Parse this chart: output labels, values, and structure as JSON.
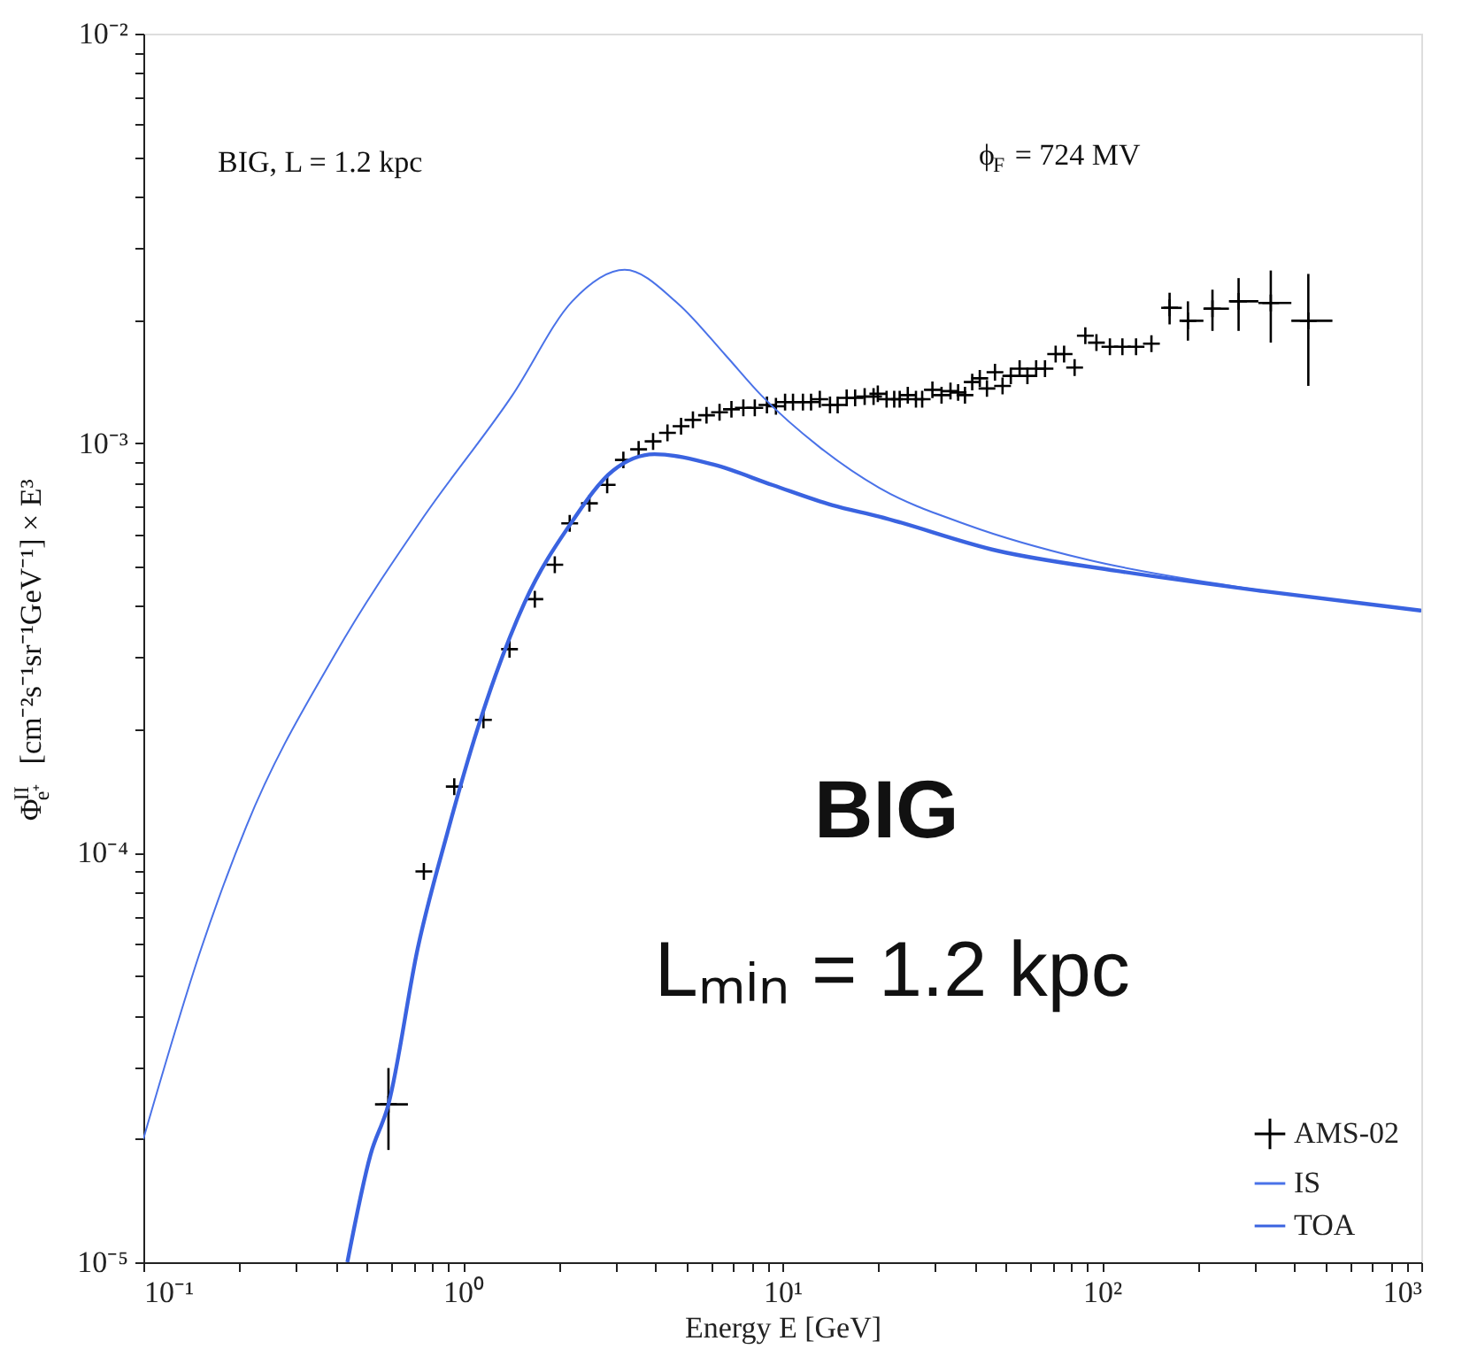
{
  "chart_data": {
    "type": "line",
    "xlabel": "Energy E [GeV]",
    "ylabel": "Φ$^{II}$$_{e⁺}$ [cm⁻²s⁻¹sr⁻¹GeV⁻¹] × E³",
    "annotations": [
      "BIG, L = 1.2 kpc",
      "ϕ$_{F}$ = 724 MV",
      "BIG",
      "Lₘᵢₙ = 1.2 kpc"
    ],
    "log": "xy",
    "grid": false,
    "legend": "bottom right",
    "xlim": [
      0.1,
      1000
    ],
    "ylim": [
      1e-05,
      0.01
    ],
    "xticks": [
      {
        "value": 0.1,
        "label": "10⁻¹"
      },
      {
        "value": 0.2,
        "label": null
      },
      {
        "value": 0.3,
        "label": null
      },
      {
        "value": 0.4,
        "label": null
      },
      {
        "value": 0.5,
        "label": null
      },
      {
        "value": 0.6,
        "label": null
      },
      {
        "value": 0.7,
        "label": null
      },
      {
        "value": 0.8,
        "label": null
      },
      {
        "value": 0.9,
        "label": null
      },
      {
        "value": 1,
        "label": "10⁰"
      },
      {
        "value": 2,
        "label": null
      },
      {
        "value": 3,
        "label": null
      },
      {
        "value": 4,
        "label": null
      },
      {
        "value": 5,
        "label": null
      },
      {
        "value": 6,
        "label": null
      },
      {
        "value": 7,
        "label": null
      },
      {
        "value": 8,
        "label": null
      },
      {
        "value": 9,
        "label": null
      },
      {
        "value": 10,
        "label": "10¹"
      },
      {
        "value": 20,
        "label": null
      },
      {
        "value": 30,
        "label": null
      },
      {
        "value": 40,
        "label": null
      },
      {
        "value": 50,
        "label": null
      },
      {
        "value": 60,
        "label": null
      },
      {
        "value": 70,
        "label": null
      },
      {
        "value": 80,
        "label": null
      },
      {
        "value": 90,
        "label": null
      },
      {
        "value": 100,
        "label": "10²"
      },
      {
        "value": 200,
        "label": null
      },
      {
        "value": 300,
        "label": null
      },
      {
        "value": 400,
        "label": null
      },
      {
        "value": 500,
        "label": null
      },
      {
        "value": 600,
        "label": null
      },
      {
        "value": 700,
        "label": null
      },
      {
        "value": 800,
        "label": null
      },
      {
        "value": 900,
        "label": null
      },
      {
        "value": 1000,
        "label": "10³"
      }
    ],
    "yticks": [
      {
        "value": 1e-05,
        "label": "10⁻⁵"
      },
      {
        "value": 2e-05,
        "label": null
      },
      {
        "value": 3e-05,
        "label": null
      },
      {
        "value": 4e-05,
        "label": null
      },
      {
        "value": 5e-05,
        "label": null
      },
      {
        "value": 6e-05,
        "label": null
      },
      {
        "value": 7e-05,
        "label": null
      },
      {
        "value": 8e-05,
        "label": null
      },
      {
        "value": 9e-05,
        "label": null
      },
      {
        "value": 0.0001,
        "label": "10⁻⁴"
      },
      {
        "value": 0.0002,
        "label": null
      },
      {
        "value": 0.0003,
        "label": null
      },
      {
        "value": 0.0004,
        "label": null
      },
      {
        "value": 0.0005,
        "label": null
      },
      {
        "value": 0.0006,
        "label": null
      },
      {
        "value": 0.0007,
        "label": null
      },
      {
        "value": 0.0008,
        "label": null
      },
      {
        "value": 0.0009,
        "label": null
      },
      {
        "value": 0.001,
        "label": "10⁻³"
      },
      {
        "value": 0.002,
        "label": null
      },
      {
        "value": 0.003,
        "label": null
      },
      {
        "value": 0.004,
        "label": null
      },
      {
        "value": 0.005,
        "label": null
      },
      {
        "value": 0.006,
        "label": null
      },
      {
        "value": 0.007,
        "label": null
      },
      {
        "value": 0.008,
        "label": null
      },
      {
        "value": 0.009,
        "label": null
      },
      {
        "value": 0.01,
        "label": "10⁻²"
      }
    ],
    "series": [
      {
        "name": "AMS-02",
        "type": "scatter",
        "marker": "cross",
        "color": "#000000",
        "x": [
          0.585,
          0.755,
          0.94,
          1.16,
          1.4,
          1.68,
          1.94,
          2.16,
          2.49,
          2.83,
          3.18,
          3.55,
          3.94,
          4.37,
          4.82,
          5.25,
          5.79,
          6.36,
          6.93,
          7.55,
          8.2,
          8.95,
          9.55,
          10.2,
          10.8,
          11.6,
          12.3,
          13.1,
          14.1,
          14.9,
          15.9,
          16.9,
          18.1,
          19.3,
          19.9,
          21.2,
          22.4,
          23.3,
          24.7,
          26.2,
          27.4,
          29.5,
          31.5,
          33.6,
          35.5,
          37.3,
          39.3,
          41.5,
          43.7,
          46.3,
          48.9,
          51.9,
          55.3,
          58.5,
          62.3,
          66.4,
          71.7,
          76.2,
          82.2,
          88.8,
          96.2,
          106,
          116,
          128,
          143,
          163,
          186,
          222,
          268,
          338,
          443
        ],
        "values": [
          2.43e-05,
          9e-05,
          0.000145,
          0.000211,
          0.000314,
          0.000416,
          0.000505,
          0.000637,
          0.000713,
          0.000791,
          0.00091,
          0.000966,
          0.00101,
          0.00106,
          0.0011,
          0.00114,
          0.00117,
          0.00119,
          0.00121,
          0.00122,
          0.00122,
          0.00124,
          0.00123,
          0.00126,
          0.00126,
          0.00126,
          0.00126,
          0.00128,
          0.00124,
          0.00124,
          0.00129,
          0.00129,
          0.0013,
          0.0013,
          0.00132,
          0.00128,
          0.00128,
          0.00128,
          0.00131,
          0.00128,
          0.00128,
          0.00135,
          0.00131,
          0.00134,
          0.00133,
          0.00131,
          0.00141,
          0.00144,
          0.00136,
          0.00149,
          0.00138,
          0.00146,
          0.00152,
          0.00146,
          0.00152,
          0.00152,
          0.00165,
          0.00165,
          0.00153,
          0.00183,
          0.00176,
          0.00172,
          0.00172,
          0.00172,
          0.00175,
          0.00214,
          0.00199,
          0.00213,
          0.00222,
          0.0022,
          0.00199
        ],
        "errors": [
          [
            1.88e-05,
            2.98e-05
          ],
          null,
          null,
          null,
          null,
          null,
          null,
          null,
          null,
          null,
          null,
          null,
          null,
          null,
          null,
          null,
          null,
          null,
          null,
          null,
          null,
          null,
          null,
          null,
          null,
          null,
          null,
          null,
          null,
          null,
          null,
          null,
          null,
          null,
          null,
          null,
          null,
          null,
          null,
          null,
          null,
          null,
          null,
          null,
          null,
          null,
          null,
          null,
          null,
          null,
          null,
          null,
          null,
          null,
          null,
          null,
          null,
          null,
          null,
          null,
          null,
          null,
          null,
          null,
          null,
          [
            0.00195,
            0.00233
          ],
          [
            0.00178,
            0.00222
          ],
          [
            0.00188,
            0.00237
          ],
          [
            0.00188,
            0.00253
          ],
          [
            0.00176,
            0.00264
          ],
          [
            0.00138,
            0.00259
          ]
        ],
        "xerrors": [
          [
            0.531,
            0.673
          ],
          null,
          null,
          null,
          null,
          null,
          null,
          null,
          null,
          null,
          null,
          null,
          null,
          null,
          null,
          null,
          null,
          null,
          null,
          null,
          null,
          null,
          null,
          null,
          null,
          null,
          null,
          null,
          null,
          null,
          null,
          null,
          null,
          null,
          null,
          null,
          null,
          null,
          null,
          null,
          null,
          null,
          null,
          null,
          null,
          null,
          null,
          null,
          null,
          null,
          null,
          null,
          null,
          null,
          null,
          null,
          null,
          null,
          null,
          null,
          null,
          null,
          null,
          null,
          null,
          [
            156,
            178
          ],
          [
            178,
            208
          ],
          [
            208,
            250
          ],
          [
            250,
            309
          ],
          [
            309,
            392
          ],
          [
            392,
            527
          ]
        ]
      },
      {
        "name": "IS",
        "color": "#4a72e8",
        "x": [
          0.1,
          0.152,
          0.21,
          0.398,
          0.755,
          1.43,
          2.2,
          3.21,
          4.72,
          6.64,
          8.58,
          13.1,
          20.1,
          38.1,
          89.5,
          260,
          1000
        ],
        "values": [
          2e-05,
          5.86e-05,
          0.000116,
          0.000305,
          0.000662,
          0.00131,
          0.00222,
          0.00265,
          0.00219,
          0.00164,
          0.00131,
          0.000977,
          0.000778,
          0.000631,
          0.00052,
          0.000447,
          0.00039
        ]
      },
      {
        "name": "TOA",
        "color": "#3a63e0",
        "x": [
          0.435,
          0.514,
          0.585,
          0.723,
          0.895,
          1.11,
          1.56,
          2.19,
          2.95,
          3.98,
          6.1,
          9.33,
          14.3,
          20.1,
          47.2,
          111,
          321,
          1000
        ],
        "values": [
          1e-05,
          1.83e-05,
          2.43e-05,
          5.86e-05,
          0.000112,
          0.0002,
          0.000408,
          0.000641,
          0.000857,
          0.00094,
          0.000886,
          0.00079,
          0.000706,
          0.000662,
          0.000546,
          0.000488,
          0.000435,
          0.00039
        ]
      }
    ]
  }
}
